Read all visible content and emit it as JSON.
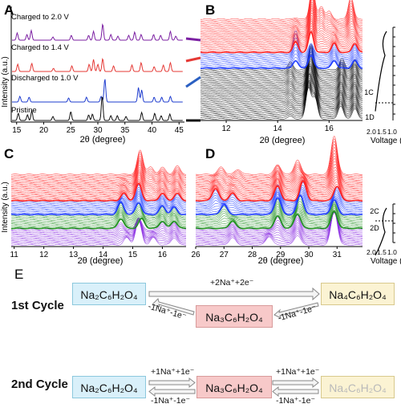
{
  "panels": {
    "a": "A",
    "b": "B",
    "c": "C",
    "d": "D",
    "e": "E"
  },
  "panel_a": {
    "ylabel": "Intensity (a.u.)",
    "xlabel": "2θ (degree)",
    "xticks": [
      "15",
      "20",
      "25",
      "30",
      "35",
      "40",
      "45"
    ],
    "traces": [
      {
        "name": "Charged to 2.0 V",
        "color": "#7b1fa2"
      },
      {
        "name": "Charged to 1.4 V",
        "color": "#e53935"
      },
      {
        "name": "Discharged to 1.0 V",
        "color": "#1e3ccf"
      },
      {
        "name": "Pristine",
        "color": "#111111"
      }
    ]
  },
  "panel_b": {
    "xlabel": "2θ (degree)",
    "xticks": [
      "12",
      "14",
      "16"
    ],
    "side_labels": [
      "1C",
      "1D"
    ],
    "voltage_label": "Voltage (V)",
    "voltage_ticks": [
      "2.0",
      "1.5",
      "1.0"
    ]
  },
  "panel_c": {
    "ylabel": "Intensity (a.u.)",
    "xlabel": "2θ (degree)",
    "xticks": [
      "11",
      "12",
      "13",
      "14",
      "15",
      "16"
    ]
  },
  "panel_d": {
    "xlabel": "2θ (degree)",
    "xticks": [
      "26",
      "27",
      "28",
      "29",
      "30",
      "31"
    ],
    "side_labels": [
      "2C",
      "2D"
    ],
    "voltage_label": "Voltage (V)",
    "voltage_ticks": [
      "2.0",
      "1.5",
      "1.0"
    ]
  },
  "panel_e": {
    "cycle1": {
      "label": "1st Cycle",
      "forward": "+2Na⁺+2e⁻",
      "back_left": "-1Na⁺-1e⁻",
      "back_right": "-1Na⁺-1e⁻"
    },
    "cycle2": {
      "label": "2nd Cycle",
      "fwd_left": "+1Na⁺+1e⁻",
      "fwd_right": "+1Na⁺+1e⁻",
      "back_left": "-1Na⁺-1e⁻",
      "back_right": "-1Na⁺-1e⁻"
    },
    "compounds": {
      "na2": "Na₂C₆H₂O₄",
      "na3": "Na₃C₆H₂O₄",
      "na4": "Na₄C₆H₂O₄"
    }
  },
  "chart_data": [
    {
      "type": "line",
      "panel": "A",
      "xlabel": "2θ (degree)",
      "ylabel": "Intensity (a.u.)",
      "xlim": [
        14,
        46
      ],
      "series": [
        {
          "name": "Charged to 2.0 V",
          "peaks": [
            [
              15.1,
              0.45
            ],
            [
              16.9,
              0.35
            ],
            [
              17.7,
              0.6
            ],
            [
              21.7,
              0.2
            ],
            [
              25.1,
              0.3
            ],
            [
              28.3,
              0.3
            ],
            [
              29.2,
              0.55
            ],
            [
              30.9,
              1.0
            ],
            [
              32.4,
              0.35
            ],
            [
              33.7,
              0.25
            ],
            [
              35.7,
              0.3
            ],
            [
              36.8,
              0.5
            ],
            [
              38.0,
              0.35
            ],
            [
              40.3,
              0.35
            ],
            [
              41.6,
              0.3
            ],
            [
              43.4,
              0.55
            ],
            [
              44.4,
              0.25
            ]
          ]
        },
        {
          "name": "Charged to 1.4 V",
          "peaks": [
            [
              15.2,
              0.45
            ],
            [
              17.8,
              0.5
            ],
            [
              21.8,
              0.2
            ],
            [
              25.2,
              0.35
            ],
            [
              28.4,
              0.45
            ],
            [
              29.2,
              0.75
            ],
            [
              30.0,
              0.45
            ],
            [
              30.9,
              0.8
            ],
            [
              32.9,
              0.35
            ],
            [
              36.3,
              0.4
            ],
            [
              38.0,
              0.55
            ],
            [
              40.4,
              0.3
            ],
            [
              42.1,
              0.4
            ],
            [
              43.4,
              0.55
            ]
          ]
        },
        {
          "name": "Discharged to 1.0 V",
          "peaks": [
            [
              15.6,
              0.35
            ],
            [
              17.3,
              0.3
            ],
            [
              24.6,
              0.25
            ],
            [
              27.9,
              0.3
            ],
            [
              30.6,
              0.35
            ],
            [
              31.3,
              1.45
            ],
            [
              37.5,
              0.9
            ],
            [
              38.1,
              0.75
            ],
            [
              40.4,
              0.3
            ],
            [
              41.8,
              0.3
            ],
            [
              43.4,
              0.35
            ]
          ]
        },
        {
          "name": "Pristine",
          "peaks": [
            [
              15.3,
              0.45
            ],
            [
              17.0,
              0.35
            ],
            [
              17.8,
              0.6
            ],
            [
              21.7,
              0.25
            ],
            [
              25.0,
              0.55
            ],
            [
              28.3,
              0.35
            ],
            [
              29.0,
              0.4
            ],
            [
              30.8,
              1.55
            ],
            [
              32.4,
              0.3
            ],
            [
              33.6,
              0.3
            ],
            [
              35.2,
              0.25
            ],
            [
              38.1,
              0.5
            ],
            [
              40.5,
              0.45
            ],
            [
              41.7,
              0.3
            ],
            [
              43.3,
              0.4
            ]
          ]
        }
      ]
    },
    {
      "type": "line",
      "panel": "B",
      "xlabel": "2θ (degree)",
      "xlim": [
        11,
        17.3
      ],
      "segments": [
        {
          "name": "black",
          "color": "#000000",
          "traces": 32,
          "peaks_start": [
            [
              14.5,
              0.1
            ],
            [
              15.2,
              1.2
            ],
            [
              15.45,
              0.8
            ],
            [
              16.45,
              0.5
            ],
            [
              17.0,
              0.4
            ]
          ],
          "peaks_end": [
            [
              14.5,
              0.3
            ],
            [
              15.3,
              1.0
            ],
            [
              16.5,
              0.45
            ],
            [
              17.0,
              0.4
            ]
          ]
        },
        {
          "name": "blue",
          "color": "#1e3cff",
          "traces": 10,
          "peaks_start": [
            [
              14.7,
              0.3
            ],
            [
              15.3,
              0.5
            ],
            [
              16.2,
              0.3
            ],
            [
              17.0,
              0.3
            ]
          ],
          "peaks_end": [
            [
              14.7,
              0.9
            ],
            [
              15.3,
              0.4
            ],
            [
              16.2,
              0.35
            ],
            [
              17.0,
              0.35
            ]
          ]
        },
        {
          "name": "red",
          "color": "#ff2020",
          "traces": 22,
          "peaks_start": [
            [
              14.7,
              0.4
            ],
            [
              15.3,
              0.8
            ],
            [
              16.2,
              0.35
            ],
            [
              17.0,
              0.35
            ]
          ],
          "peaks_end": [
            [
              14.7,
              0.05
            ],
            [
              15.35,
              1.3
            ],
            [
              15.7,
              0.5
            ],
            [
              16.0,
              0.3
            ],
            [
              16.85,
              0.9
            ]
          ]
        }
      ]
    },
    {
      "type": "line",
      "panel": "C",
      "xlabel": "2θ (degree)",
      "xlim": [
        10.9,
        16.8
      ],
      "segments": [
        {
          "name": "purple",
          "color": "#8a2be2",
          "traces": 12,
          "peaks_start": [
            [
              14.8,
              0.3
            ],
            [
              15.2,
              1.0
            ],
            [
              15.7,
              0.3
            ],
            [
              16.4,
              0.3
            ]
          ],
          "peaks_end": [
            [
              14.6,
              0.3
            ],
            [
              15.2,
              0.5
            ],
            [
              16.0,
              0.3
            ],
            [
              16.4,
              0.3
            ]
          ]
        },
        {
          "name": "green",
          "color": "#1e8f1e",
          "traces": 10,
          "peaks_start": [
            [
              14.6,
              0.4
            ],
            [
              15.3,
              0.4
            ],
            [
              16.0,
              0.3
            ],
            [
              16.4,
              0.3
            ]
          ],
          "peaks_end": [
            [
              14.6,
              0.5
            ],
            [
              15.2,
              0.5
            ],
            [
              16.0,
              0.35
            ],
            [
              16.4,
              0.3
            ]
          ]
        },
        {
          "name": "blue",
          "color": "#1e3cff",
          "traces": 10,
          "peaks_start": [
            [
              14.6,
              0.5
            ],
            [
              15.2,
              0.5
            ],
            [
              16.0,
              0.35
            ],
            [
              16.4,
              0.3
            ]
          ],
          "peaks_end": [
            [
              14.7,
              0.3
            ],
            [
              15.2,
              0.7
            ],
            [
              16.0,
              0.3
            ],
            [
              16.5,
              0.3
            ]
          ]
        },
        {
          "name": "red",
          "color": "#ff2020",
          "traces": 20,
          "peaks_start": [
            [
              14.7,
              0.3
            ],
            [
              15.2,
              0.7
            ],
            [
              16.0,
              0.3
            ],
            [
              16.5,
              0.3
            ]
          ],
          "peaks_end": [
            [
              15.25,
              1.0
            ],
            [
              15.6,
              0.3
            ],
            [
              16.0,
              0.3
            ],
            [
              16.5,
              0.35
            ]
          ]
        }
      ]
    },
    {
      "type": "line",
      "panel": "D",
      "xlabel": "2θ (degree)",
      "xlim": [
        26,
        31.9
      ],
      "segments": [
        {
          "name": "purple",
          "color": "#8a2be2",
          "traces": 12,
          "peaks_start": [
            [
              27.3,
              0.3
            ],
            [
              28.6,
              0.35
            ],
            [
              29.6,
              0.4
            ],
            [
              30.9,
              1.4
            ]
          ],
          "peaks_end": [
            [
              27.3,
              0.3
            ],
            [
              28.9,
              0.5
            ],
            [
              29.6,
              0.6
            ],
            [
              30.9,
              0.7
            ]
          ]
        },
        {
          "name": "green",
          "color": "#1e8f1e",
          "traces": 10,
          "peaks_start": [
            [
              27.3,
              0.3
            ],
            [
              28.9,
              0.5
            ],
            [
              29.6,
              0.6
            ],
            [
              30.9,
              0.7
            ]
          ],
          "peaks_end": [
            [
              27.0,
              0.4
            ],
            [
              28.9,
              0.7
            ],
            [
              29.7,
              0.8
            ],
            [
              30.9,
              0.6
            ]
          ]
        },
        {
          "name": "blue",
          "color": "#1e3cff",
          "traces": 10,
          "peaks_start": [
            [
              27.0,
              0.4
            ],
            [
              28.9,
              0.7
            ],
            [
              29.7,
              0.8
            ],
            [
              30.9,
              0.6
            ]
          ],
          "peaks_end": [
            [
              26.7,
              0.5
            ],
            [
              27.3,
              0.3
            ],
            [
              28.9,
              0.7
            ],
            [
              29.8,
              0.9
            ],
            [
              31.0,
              0.6
            ]
          ]
        },
        {
          "name": "red",
          "color": "#ff2020",
          "traces": 20,
          "peaks_start": [
            [
              26.7,
              0.5
            ],
            [
              27.3,
              0.3
            ],
            [
              28.9,
              0.6
            ],
            [
              29.8,
              0.8
            ],
            [
              31.0,
              0.6
            ]
          ],
          "peaks_end": [
            [
              26.9,
              0.3
            ],
            [
              27.5,
              0.2
            ],
            [
              28.9,
              0.4
            ],
            [
              29.6,
              0.6
            ],
            [
              30.9,
              1.6
            ]
          ]
        }
      ]
    }
  ]
}
